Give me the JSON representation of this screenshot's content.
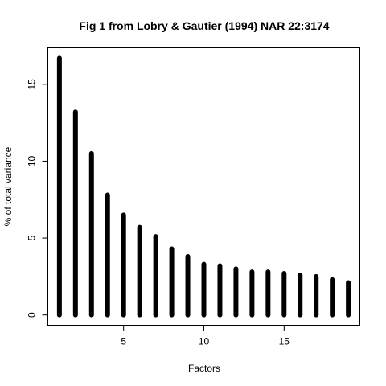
{
  "chart_data": {
    "type": "bar",
    "title": "Fig 1 from Lobry & Gautier (1994) NAR 22:3174",
    "xlabel": "Factors",
    "ylabel": "% of total variance",
    "x": [
      1,
      2,
      3,
      4,
      5,
      6,
      7,
      8,
      9,
      10,
      11,
      12,
      13,
      14,
      15,
      16,
      17,
      18,
      19
    ],
    "values": [
      16.7,
      13.2,
      10.5,
      7.8,
      6.5,
      5.7,
      5.1,
      4.3,
      3.8,
      3.3,
      3.2,
      3.0,
      2.8,
      2.8,
      2.7,
      2.6,
      2.5,
      2.3,
      2.1
    ],
    "xlim": [
      0.28,
      19.72
    ],
    "ylim": [
      -0.67,
      17.37
    ],
    "xticks": [
      5,
      10,
      15
    ],
    "yticks": [
      0,
      5,
      10,
      15
    ],
    "xtick_labels": [
      "5",
      "10",
      "15"
    ],
    "ytick_labels": [
      "0",
      "5",
      "10",
      "15"
    ],
    "grid": false,
    "bar_color": "#000000",
    "axis_color": "#000000",
    "background": "#ffffff"
  }
}
